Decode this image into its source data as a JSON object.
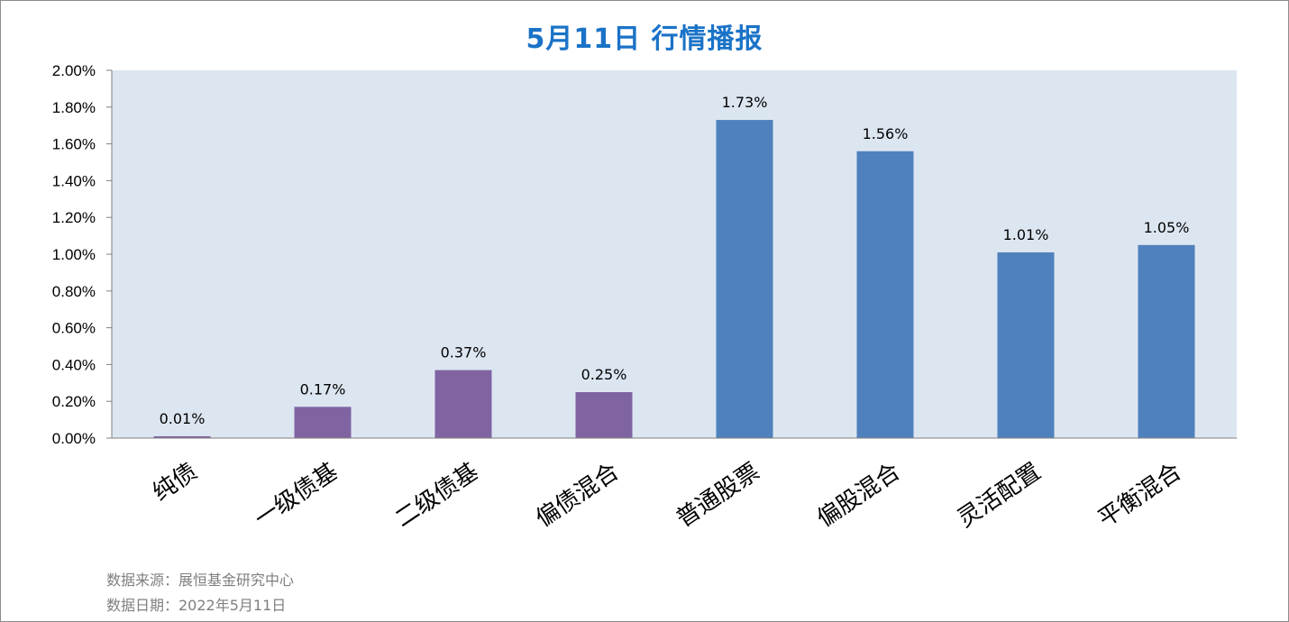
{
  "chart_data": {
    "type": "bar",
    "title": "5月11日  行情播报",
    "categories": [
      "纯债",
      "一级债基",
      "二级债基",
      "偏债混合",
      "普通股票",
      "偏股混合",
      "灵活配置",
      "平衡混合"
    ],
    "values": [
      0.01,
      0.17,
      0.37,
      0.25,
      1.73,
      1.56,
      1.01,
      1.05
    ],
    "value_labels": [
      "0.01%",
      "0.17%",
      "0.37%",
      "0.25%",
      "1.73%",
      "1.56%",
      "1.01%",
      "1.05%"
    ],
    "ylim": [
      0,
      2.0
    ],
    "yticks": [
      0,
      0.2,
      0.4,
      0.6,
      0.8,
      1.0,
      1.2,
      1.4,
      1.6,
      1.8,
      2.0
    ],
    "ytick_labels": [
      "0.00%",
      "0.20%",
      "0.40%",
      "0.60%",
      "0.80%",
      "1.00%",
      "1.20%",
      "1.40%",
      "1.60%",
      "1.80%",
      "2.00%"
    ],
    "xlabel": "",
    "ylabel": "",
    "grid": false,
    "legend": "none",
    "colors": {
      "bond_group": "#8064a2",
      "equity_group": "#4f81bd",
      "plot_background": "#dce6f1",
      "axis": "#7f7f7f",
      "title": "#1a73c7"
    },
    "bar_color_groups": [
      "bond_group",
      "bond_group",
      "bond_group",
      "bond_group",
      "equity_group",
      "equity_group",
      "equity_group",
      "equity_group"
    ]
  },
  "footer": {
    "source": "数据来源：展恒基金研究中心",
    "date": "数据日期：2022年5月11日"
  }
}
